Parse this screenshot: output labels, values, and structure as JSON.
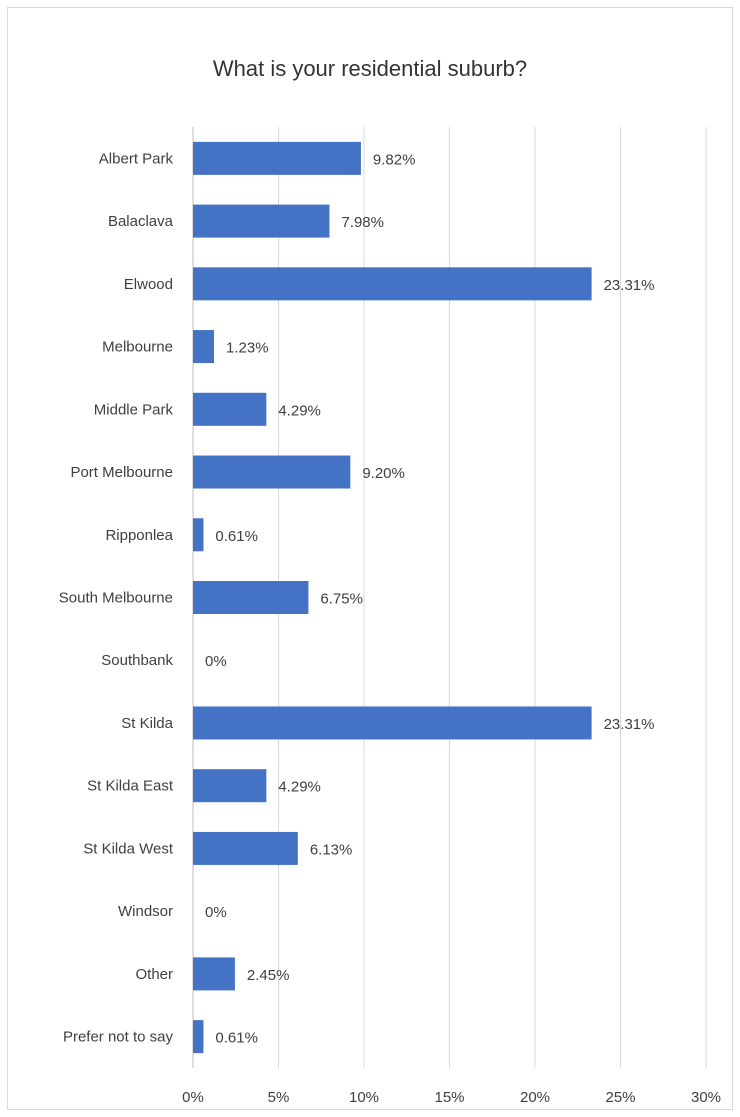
{
  "chart_data": {
    "type": "bar",
    "orientation": "horizontal",
    "title": "What is your residential suburb?",
    "xlabel": "",
    "ylabel": "",
    "xlim": [
      0,
      30
    ],
    "x_ticks": [
      "0%",
      "5%",
      "10%",
      "15%",
      "20%",
      "25%",
      "30%"
    ],
    "grid": true,
    "legend": "none",
    "bar_color": "#4472C4",
    "categories": [
      "Albert Park",
      "Balaclava",
      "Elwood",
      "Melbourne",
      "Middle Park",
      "Port Melbourne",
      "Ripponlea",
      "South Melbourne",
      "Southbank",
      "St Kilda",
      "St Kilda East",
      "St Kilda West",
      "Windsor",
      "Other",
      "Prefer not to say"
    ],
    "values": [
      9.82,
      7.98,
      23.31,
      1.23,
      4.29,
      9.2,
      0.61,
      6.75,
      0,
      23.31,
      4.29,
      6.13,
      0,
      2.45,
      0.61
    ],
    "value_labels": [
      "9.82%",
      "7.98%",
      "23.31%",
      "1.23%",
      "4.29%",
      "9.20%",
      "0.61%",
      "6.75%",
      "0%",
      "23.31%",
      "4.29%",
      "6.13%",
      "0%",
      "2.45%",
      "0.61%"
    ]
  }
}
